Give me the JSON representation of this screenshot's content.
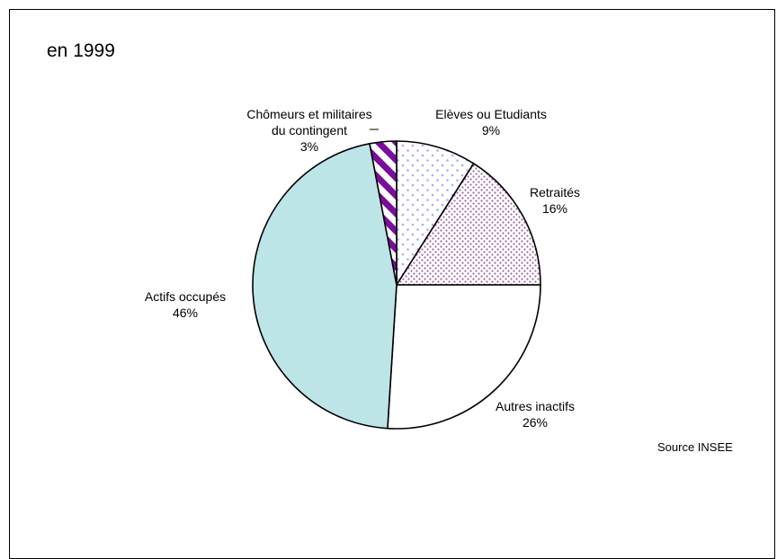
{
  "chart_data": {
    "type": "pie",
    "title": "en 1999",
    "source": "Source INSEE",
    "slices": [
      {
        "label": [
          "Elèves ou Etudiants"
        ],
        "pct_label": "9%",
        "value": 9,
        "color": "#aaaaff",
        "pattern": "sparse-dots"
      },
      {
        "label": [
          "Retraités"
        ],
        "pct_label": "16%",
        "value": 16,
        "color": "#9e6a9e",
        "pattern": "dense-dots"
      },
      {
        "label": [
          "Autres inactifs"
        ],
        "pct_label": "26%",
        "value": 26,
        "color": "#ffffff",
        "pattern": "none"
      },
      {
        "label": [
          "Actifs occupés"
        ],
        "pct_label": "46%",
        "value": 46,
        "color": "#bde4e7",
        "pattern": "solid"
      },
      {
        "label": [
          "Chômeurs et militaires",
          "du contingent"
        ],
        "pct_label": "3%",
        "value": 3,
        "color": "#7a0e9a",
        "pattern": "stripes"
      }
    ]
  }
}
